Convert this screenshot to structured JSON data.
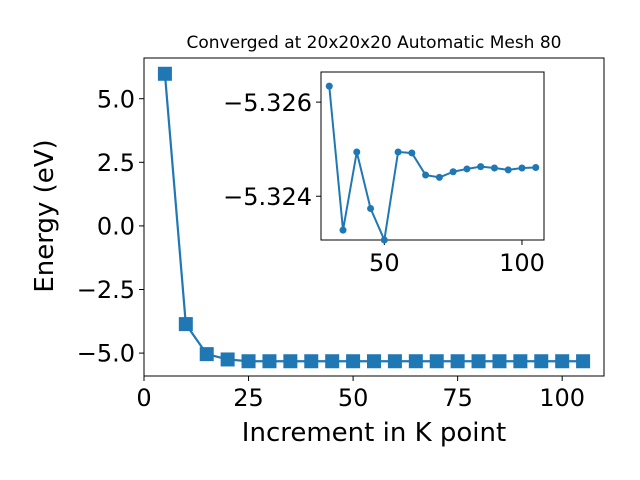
{
  "colors": {
    "series": "#1f77b4",
    "axis": "#000000",
    "background": "#ffffff"
  },
  "chart_data": [
    {
      "type": "line",
      "marker": "square",
      "title": "Converged at 20x20x20 Automatic Mesh 80",
      "xlabel": "Increment in K point",
      "ylabel": "Energy (eV)",
      "xlim": [
        0,
        110
      ],
      "ylim": [
        -5.9,
        6.6
      ],
      "xticks": [
        0,
        25,
        50,
        75,
        100
      ],
      "xtick_labels": [
        "0",
        "25",
        "50",
        "75",
        "100"
      ],
      "yticks": [
        5.0,
        2.5,
        0.0,
        -2.5,
        -5.0
      ],
      "ytick_labels": [
        "5.0",
        "2.5",
        "0.0",
        "−2.5",
        "−5.0"
      ],
      "grid": false,
      "x": [
        5,
        10,
        15,
        20,
        25,
        30,
        35,
        40,
        45,
        50,
        55,
        60,
        65,
        70,
        75,
        80,
        85,
        90,
        95,
        100,
        105
      ],
      "y": [
        5.98,
        -3.86,
        -5.04,
        -5.25,
        -5.32,
        -5.32,
        -5.32,
        -5.32,
        -5.32,
        -5.32,
        -5.32,
        -5.32,
        -5.32,
        -5.32,
        -5.32,
        -5.32,
        -5.32,
        -5.32,
        -5.32,
        -5.32,
        -5.32
      ]
    },
    {
      "type": "line",
      "marker": "circle",
      "inset": true,
      "xlim": [
        27,
        108
      ],
      "ylim": [
        -5.32307,
        -5.32664
      ],
      "xticks": [
        50,
        100
      ],
      "xtick_labels": [
        "50",
        "100"
      ],
      "yticks": [
        -5.326,
        -5.324
      ],
      "ytick_labels": [
        "−5.326",
        "−5.324"
      ],
      "grid": false,
      "x": [
        30,
        35,
        40,
        45,
        50,
        55,
        60,
        65,
        70,
        75,
        80,
        85,
        90,
        95,
        100,
        105
      ],
      "y": [
        -5.32634,
        -5.32328,
        -5.32494,
        -5.32374,
        -5.32307,
        -5.32494,
        -5.32492,
        -5.32445,
        -5.3244,
        -5.32452,
        -5.32458,
        -5.32463,
        -5.3246,
        -5.32456,
        -5.3246,
        -5.32461
      ]
    }
  ]
}
